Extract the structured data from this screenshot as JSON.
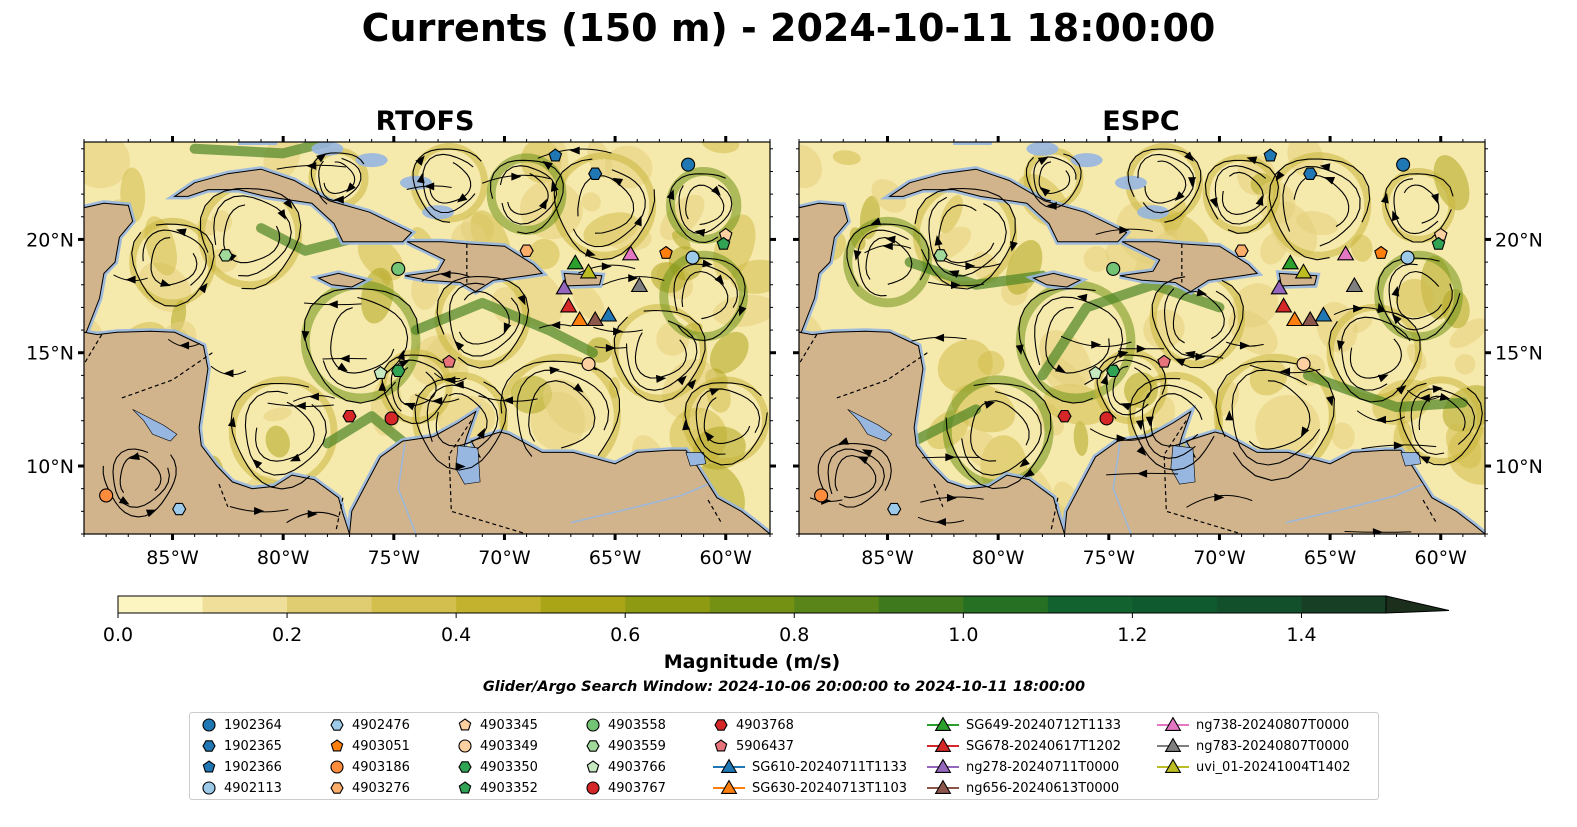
{
  "title": "Currents (150 m) - 2024-10-11 18:00:00",
  "panels": [
    {
      "title": "RTOFS"
    },
    {
      "title": "ESPC"
    }
  ],
  "axes": {
    "x_ticks": [
      "85°W",
      "80°W",
      "75°W",
      "70°W",
      "65°W",
      "60°W"
    ],
    "x_values": [
      -85,
      -80,
      -75,
      -70,
      -65,
      -60
    ],
    "y_ticks": [
      "20°N",
      "15°N",
      "10°N"
    ],
    "y_values": [
      20,
      15,
      10
    ],
    "lon_range": [
      -89,
      -58
    ],
    "lat_range": [
      7,
      24.3
    ]
  },
  "colorbar": {
    "label": "Magnitude (m/s)",
    "ticks": [
      "0.0",
      "0.2",
      "0.4",
      "0.6",
      "0.8",
      "1.0",
      "1.2",
      "1.4"
    ],
    "tick_values": [
      0,
      0.2,
      0.4,
      0.6,
      0.8,
      1.0,
      1.2,
      1.4
    ],
    "range": [
      0,
      1.5
    ],
    "extend": "max",
    "colors": [
      "#fcf5c2",
      "#efdf9a",
      "#e0cd72",
      "#d3bf4e",
      "#c2b22e",
      "#a9a517",
      "#8e9b12",
      "#759114",
      "#5a8518",
      "#3f791d",
      "#257022",
      "#126230",
      "#0f5a2e",
      "#124f2b",
      "#173f25",
      "#1b2f1c"
    ]
  },
  "search_window": "Glider/Argo Search Window: 2024-10-06 20:00:00 to 2024-10-11 18:00:00",
  "colors": {
    "ocean_low": "#f8efb6",
    "land": "#d2b48c",
    "water_body": "#97b6e0",
    "strong_current": "#3c7a22"
  },
  "chart_data": {
    "type": "heatmap",
    "description_units": "lon/lat degrees",
    "legend": [
      {
        "label": "1902364",
        "marker": "circle",
        "color": "#1f77b4",
        "lon": -61.7,
        "lat": 23.3,
        "lon_espc": -61.7,
        "lat_espc": 23.3
      },
      {
        "label": "1902365",
        "marker": "hexagon",
        "color": "#1f77b4",
        "lon": -65.9,
        "lat": 22.9,
        "lon_espc": -65.9,
        "lat_espc": 22.9
      },
      {
        "label": "1902366",
        "marker": "pentagon",
        "color": "#1f77b4",
        "lon": -67.7,
        "lat": 23.7,
        "lon_espc": -67.7,
        "lat_espc": 23.7
      },
      {
        "label": "4902113",
        "marker": "circle",
        "color": "#9ecae9",
        "lon": -61.5,
        "lat": 19.2,
        "lon_espc": -61.5,
        "lat_espc": 19.2
      },
      {
        "label": "4902476",
        "marker": "hexagon",
        "color": "#9ecae9",
        "lon": -84.7,
        "lat": 8.1,
        "lon_espc": -84.7,
        "lat_espc": 8.1
      },
      {
        "label": "4903051",
        "marker": "pentagon",
        "color": "#ff7f0e",
        "lon": -62.7,
        "lat": 19.4,
        "lon_espc": -62.7,
        "lat_espc": 19.4
      },
      {
        "label": "4903186",
        "marker": "circle",
        "color": "#fd8d3c",
        "lon": -88.0,
        "lat": 8.7,
        "lon_espc": -88.0,
        "lat_espc": 8.7
      },
      {
        "label": "4903276",
        "marker": "hexagon",
        "color": "#fdae6b",
        "lon": -69.0,
        "lat": 19.5,
        "lon_espc": -69.0,
        "lat_espc": 19.5
      },
      {
        "label": "4903345",
        "marker": "pentagon",
        "color": "#fdd0a2",
        "lon": -60.0,
        "lat": 20.2,
        "lon_espc": -60.0,
        "lat_espc": 20.2
      },
      {
        "label": "4903349",
        "marker": "circle",
        "color": "#fdd0a2",
        "lon": -66.2,
        "lat": 14.5,
        "lon_espc": -66.2,
        "lat_espc": 14.5
      },
      {
        "label": "4903350",
        "marker": "hexagon",
        "color": "#31a354",
        "lon": -74.8,
        "lat": 14.2,
        "lon_espc": -74.8,
        "lat_espc": 14.2
      },
      {
        "label": "4903352",
        "marker": "pentagon",
        "color": "#31a354",
        "lon": -60.1,
        "lat": 19.8,
        "lon_espc": -60.1,
        "lat_espc": 19.8
      },
      {
        "label": "4903558",
        "marker": "circle",
        "color": "#74c476",
        "lon": -74.8,
        "lat": 18.7,
        "lon_espc": -74.8,
        "lat_espc": 18.7
      },
      {
        "label": "4903559",
        "marker": "hexagon",
        "color": "#a1d99b",
        "lon": -82.6,
        "lat": 19.3,
        "lon_espc": -82.6,
        "lat_espc": 19.3
      },
      {
        "label": "4903766",
        "marker": "pentagon",
        "color": "#c7e9c0",
        "lon": -75.6,
        "lat": 14.1,
        "lon_espc": -75.6,
        "lat_espc": 14.1
      },
      {
        "label": "4903767",
        "marker": "circle",
        "color": "#d62728",
        "lon": -75.1,
        "lat": 12.1,
        "lon_espc": -75.1,
        "lat_espc": 12.1
      },
      {
        "label": "4903768",
        "marker": "hexagon",
        "color": "#d62728",
        "lon": -77.0,
        "lat": 12.2,
        "lon_espc": -77.0,
        "lat_espc": 12.2
      },
      {
        "label": "5906437",
        "marker": "pentagon",
        "color": "#e7747a",
        "lon": -72.5,
        "lat": 14.6,
        "lon_espc": -72.5,
        "lat_espc": 14.6
      },
      {
        "label": "SG610-20240711T1133",
        "marker": "triangle",
        "color": "#1f77b4",
        "lon": -65.3,
        "lat": 16.7,
        "lon_espc": -65.3,
        "lat_espc": 16.7
      },
      {
        "label": "SG630-20240713T1103",
        "marker": "triangle",
        "color": "#ff7f0e",
        "lon": -66.6,
        "lat": 16.5,
        "lon_espc": -66.6,
        "lat_espc": 16.5
      },
      {
        "label": "SG649-20240712T1133",
        "marker": "triangle",
        "color": "#2ca02c",
        "lon": -66.8,
        "lat": 19.0,
        "lon_espc": -66.8,
        "lat_espc": 19.0
      },
      {
        "label": "SG678-20240617T1202",
        "marker": "triangle",
        "color": "#d62728",
        "lon": -67.1,
        "lat": 17.1,
        "lon_espc": -67.1,
        "lat_espc": 17.1
      },
      {
        "label": "ng278-20240711T0000",
        "marker": "triangle",
        "color": "#9467bd",
        "lon": -67.3,
        "lat": 17.9,
        "lon_espc": -67.3,
        "lat_espc": 17.9
      },
      {
        "label": "ng656-20240613T0000",
        "marker": "triangle",
        "color": "#8c564b",
        "lon": -65.9,
        "lat": 16.5,
        "lon_espc": -65.9,
        "lat_espc": 16.5
      },
      {
        "label": "ng738-20240807T0000",
        "marker": "triangle",
        "color": "#e377c2",
        "lon": -64.3,
        "lat": 19.4,
        "lon_espc": -64.3,
        "lat_espc": 19.4
      },
      {
        "label": "ng783-20240807T0000",
        "marker": "triangle",
        "color": "#7f7f7f",
        "lon": -63.9,
        "lat": 18.0,
        "lon_espc": -63.9,
        "lat_espc": 18.0
      },
      {
        "label": "uvi_01-20241004T1402",
        "marker": "triangle",
        "color": "#bcbd22",
        "lon": -66.2,
        "lat": 18.6,
        "lon_espc": -66.2,
        "lat_espc": 18.6
      }
    ]
  }
}
